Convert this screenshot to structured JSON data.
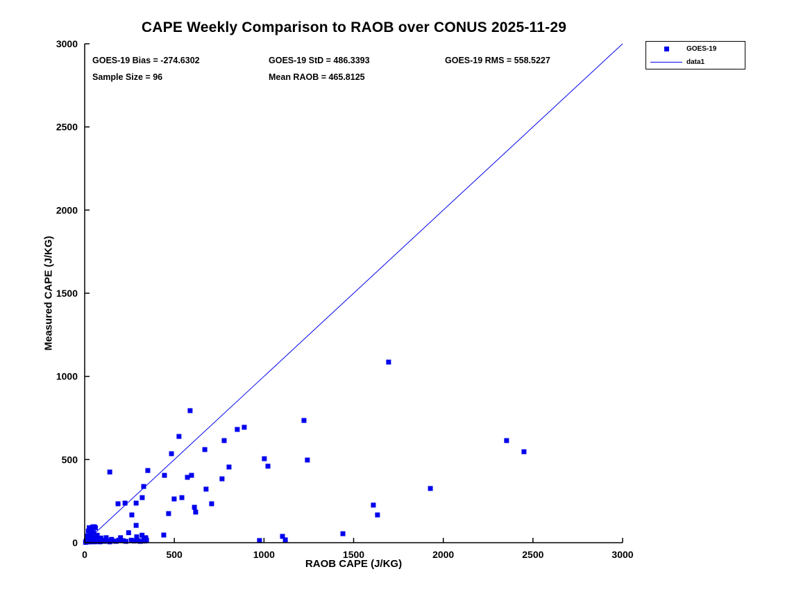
{
  "title": "CAPE Weekly Comparison to RAOB over CONUS 2025-11-29",
  "annotations": {
    "bias": "GOES-19 Bias = -274.6302",
    "std": "GOES-19 StD = 486.3393",
    "rms": "GOES-19 RMS = 558.5227",
    "sample_size": "Sample Size = 96",
    "mean_raob": "Mean RAOB = 465.8125"
  },
  "legend": {
    "entries": [
      {
        "label": "GOES-19",
        "type": "marker"
      },
      {
        "label": "data1",
        "type": "line"
      }
    ]
  },
  "chart_data": {
    "type": "scatter",
    "title": "CAPE Weekly Comparison to RAOB over CONUS 2025-11-29",
    "xlabel": "RAOB CAPE (J/KG)",
    "ylabel": "Measured CAPE (J/KG)",
    "xlim": [
      0,
      3000
    ],
    "ylim": [
      0,
      3000
    ],
    "xticks": [
      0,
      500,
      1000,
      1500,
      2000,
      2500,
      3000
    ],
    "yticks": [
      0,
      500,
      1000,
      1500,
      2000,
      2500,
      3000
    ],
    "grid": false,
    "legend_position": "top-right-outside",
    "marker_color": "#0000EE",
    "line_color": "#0000EE",
    "stats": {
      "bias": -274.6302,
      "std": 486.3393,
      "rms": 558.5227,
      "sample_size": 96,
      "mean_raob": 465.8125
    },
    "series": [
      {
        "name": "GOES-19",
        "type": "scatter",
        "points": [
          [
            5,
            2
          ],
          [
            8,
            10
          ],
          [
            12,
            5
          ],
          [
            15,
            40
          ],
          [
            18,
            12
          ],
          [
            20,
            70
          ],
          [
            22,
            5
          ],
          [
            25,
            90
          ],
          [
            28,
            20
          ],
          [
            30,
            5
          ],
          [
            32,
            55
          ],
          [
            35,
            15
          ],
          [
            38,
            80
          ],
          [
            40,
            35
          ],
          [
            42,
            8
          ],
          [
            45,
            95
          ],
          [
            48,
            12
          ],
          [
            50,
            60
          ],
          [
            54,
            96
          ],
          [
            55,
            5
          ],
          [
            58,
            30
          ],
          [
            60,
            90
          ],
          [
            65,
            10
          ],
          [
            70,
            45
          ],
          [
            75,
            8
          ],
          [
            80,
            18
          ],
          [
            85,
            5
          ],
          [
            90,
            28
          ],
          [
            95,
            10
          ],
          [
            100,
            15
          ],
          [
            110,
            8
          ],
          [
            120,
            30
          ],
          [
            130,
            12
          ],
          [
            140,
            5
          ],
          [
            140,
            425
          ],
          [
            150,
            20
          ],
          [
            160,
            10
          ],
          [
            175,
            8
          ],
          [
            186,
            234
          ],
          [
            190,
            15
          ],
          [
            200,
            30
          ],
          [
            215,
            12
          ],
          [
            225,
            238
          ],
          [
            230,
            8
          ],
          [
            245,
            60
          ],
          [
            260,
            15
          ],
          [
            263,
            167
          ],
          [
            275,
            10
          ],
          [
            287,
            238
          ],
          [
            287,
            104
          ],
          [
            290,
            35
          ],
          [
            300,
            12
          ],
          [
            310,
            8
          ],
          [
            320,
            45
          ],
          [
            321,
            271
          ],
          [
            329,
            338
          ],
          [
            330,
            20
          ],
          [
            335,
            10
          ],
          [
            340,
            30
          ],
          [
            341,
            25
          ],
          [
            345,
            15
          ],
          [
            352,
            434
          ],
          [
            441,
            46
          ],
          [
            445,
            405
          ],
          [
            468,
            175
          ],
          [
            484,
            535
          ],
          [
            499,
            263
          ],
          [
            526,
            639
          ],
          [
            542,
            271
          ],
          [
            573,
            393
          ],
          [
            588,
            794
          ],
          [
            596,
            405
          ],
          [
            612,
            213
          ],
          [
            619,
            184
          ],
          [
            670,
            560
          ],
          [
            677,
            322
          ],
          [
            708,
            234
          ],
          [
            766,
            384
          ],
          [
            778,
            614
          ],
          [
            805,
            455
          ],
          [
            851,
            681
          ],
          [
            890,
            694
          ],
          [
            975,
            13
          ],
          [
            1002,
            505
          ],
          [
            1022,
            460
          ],
          [
            1103,
            38
          ],
          [
            1119,
            17
          ],
          [
            1223,
            735
          ],
          [
            1242,
            497
          ],
          [
            1440,
            54
          ],
          [
            1610,
            226
          ],
          [
            1633,
            167
          ],
          [
            1695,
            1086
          ],
          [
            1928,
            326
          ],
          [
            2353,
            614
          ],
          [
            2450,
            547
          ]
        ]
      },
      {
        "name": "data1",
        "type": "line",
        "points": [
          [
            0,
            0
          ],
          [
            3000,
            3000
          ]
        ]
      }
    ]
  }
}
